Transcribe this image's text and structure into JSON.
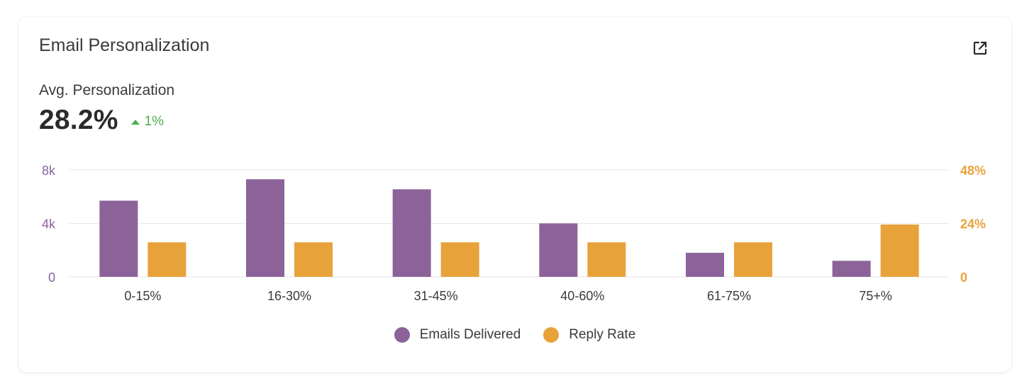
{
  "card": {
    "title": "Email Personalization",
    "expand_icon": "external-link-icon"
  },
  "kpi": {
    "label": "Avg. Personalization",
    "value": "28.2%",
    "delta": "1%",
    "delta_icon": "triangle-up-icon",
    "delta_color": "#4caf50"
  },
  "colors": {
    "emails": "#8b6399",
    "reply": "#e8a23a",
    "left_axis": "#8b6399",
    "right_axis": "#e8a23a",
    "grid": "#e6e6e6"
  },
  "chart_data": {
    "type": "bar",
    "categories": [
      "0-15%",
      "16-30%",
      "31-45%",
      "40-60%",
      "61-75%",
      "75+%"
    ],
    "series": [
      {
        "name": "Emails Delivered",
        "axis": "left",
        "values": [
          5700,
          7300,
          6550,
          4000,
          1800,
          1200
        ]
      },
      {
        "name": "Reply Rate",
        "axis": "right",
        "values": [
          15.5,
          15.5,
          15.5,
          15.5,
          15.5,
          23.5
        ]
      }
    ],
    "y_left": {
      "min": 0,
      "max": 8000,
      "ticks": [
        0,
        4000,
        8000
      ],
      "tick_labels": [
        "0",
        "4k",
        "8k"
      ]
    },
    "y_right": {
      "min": 0,
      "max": 48,
      "ticks": [
        0,
        24,
        48
      ],
      "tick_labels": [
        "0",
        "24%",
        "48%"
      ]
    },
    "grid": true,
    "legend_position": "bottom-center"
  }
}
